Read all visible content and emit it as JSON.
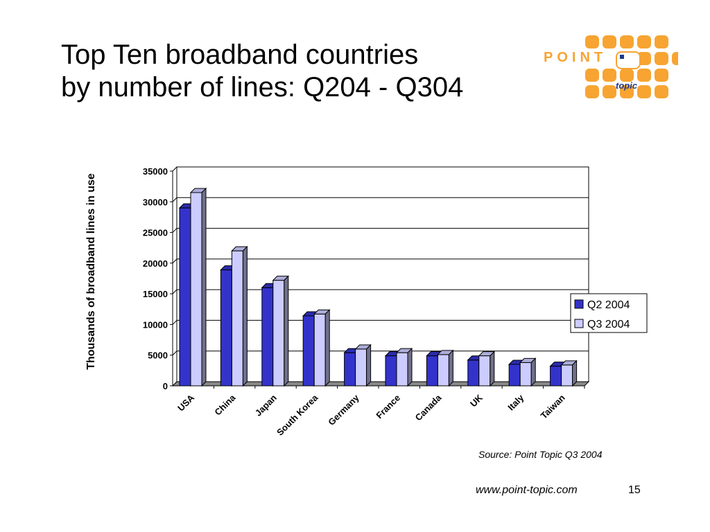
{
  "title": {
    "line1": "Top Ten broadband countries",
    "line2": "by number of lines: Q204 - Q304"
  },
  "logo": {
    "word": "POINT",
    "sub": "topic",
    "color": "#f7a432",
    "text_color": "#1e3a8a"
  },
  "source": "Source: Point Topic Q3 2004",
  "footer": {
    "url": "www.point-topic.com",
    "page": "15"
  },
  "chart_data": {
    "type": "bar",
    "style": "3d-clustered",
    "categories": [
      "USA",
      "China",
      "Japan",
      "South Korea",
      "Germany",
      "France",
      "Canada",
      "UK",
      "Italy",
      "Taiwan"
    ],
    "series": [
      {
        "name": "Q2 2004",
        "color": "#3333cc",
        "values": [
          29000,
          18900,
          16000,
          11400,
          5400,
          4900,
          4900,
          4200,
          3500,
          3200
        ]
      },
      {
        "name": "Q3 2004",
        "color": "#ccccff",
        "values": [
          31500,
          22000,
          17200,
          11700,
          6000,
          5400,
          5100,
          4900,
          3800,
          3400
        ]
      }
    ],
    "ylabel": "Thousands of broadband lines in use",
    "ylim": [
      0,
      35000
    ],
    "yticks": [
      "0",
      "5000",
      "10000",
      "15000",
      "20000",
      "25000",
      "30000",
      "35000"
    ],
    "grid": true,
    "legend": "right"
  }
}
